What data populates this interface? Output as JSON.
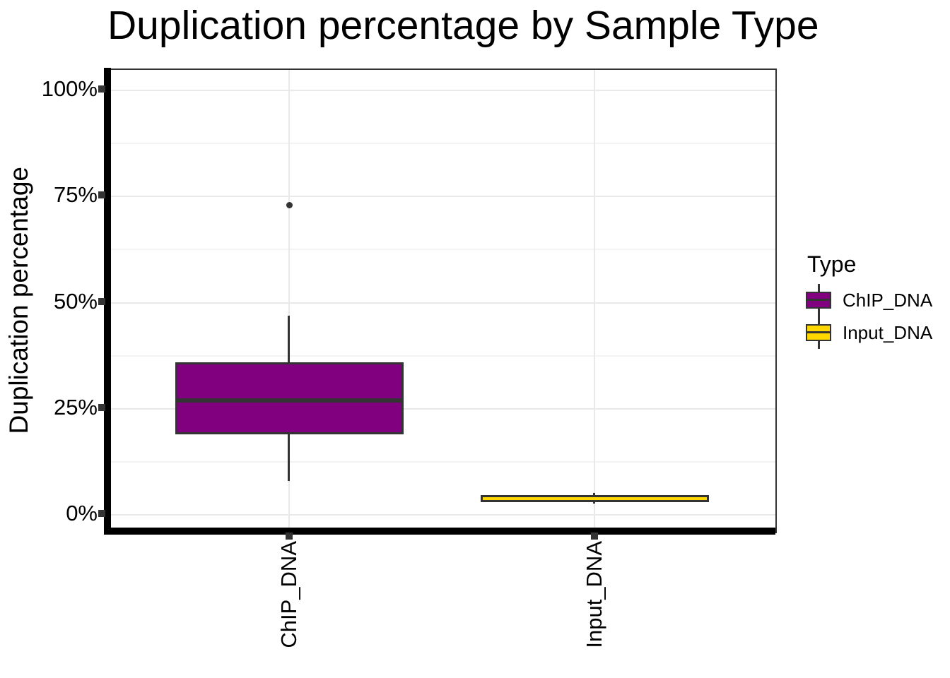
{
  "chart_data": {
    "type": "boxplot",
    "title": "Duplication percentage by Sample Type",
    "xlabel": "",
    "ylabel": "Duplication percentage",
    "units": "percent",
    "y_axis": {
      "ticks": [
        {
          "label": "0%",
          "value": 0
        },
        {
          "label": "25%",
          "value": 25
        },
        {
          "label": "50%",
          "value": 50
        },
        {
          "label": "75%",
          "value": 75
        },
        {
          "label": "100%",
          "value": 100
        }
      ],
      "range_percent": [
        -4.5,
        104.5
      ],
      "grid": "major and minor horizontal lines, vertical line at each category"
    },
    "categories": [
      "ChIP_DNA",
      "Input_DNA"
    ],
    "series": [
      {
        "name": "ChIP_DNA",
        "fill_color": "#800080",
        "whisker_low": 8,
        "q1": 19,
        "median": 27,
        "q3": 36,
        "whisker_high": 47,
        "outliers": [
          73
        ]
      },
      {
        "name": "Input_DNA",
        "fill_color": "#FFD700",
        "whisker_low": 2.6,
        "q1": 3.0,
        "median": 3.8,
        "q3": 4.7,
        "whisker_high": 5.2,
        "outliers": []
      }
    ],
    "legend": {
      "title": "Type",
      "position": "right",
      "entries": [
        {
          "label": "ChIP_DNA",
          "color": "#800080"
        },
        {
          "label": "Input_DNA",
          "color": "#FFD700"
        }
      ]
    },
    "colors": {
      "box_border": "#333333",
      "median_line": "#333333",
      "outlier_point": "#333333",
      "grid_major": "#E9E9E9",
      "grid_minor": "#F3F3F3",
      "axis_line": "#000000",
      "tick_mark": "#333333",
      "text": "#000000",
      "panel_border": "#333333",
      "background": "#FFFFFF"
    }
  }
}
